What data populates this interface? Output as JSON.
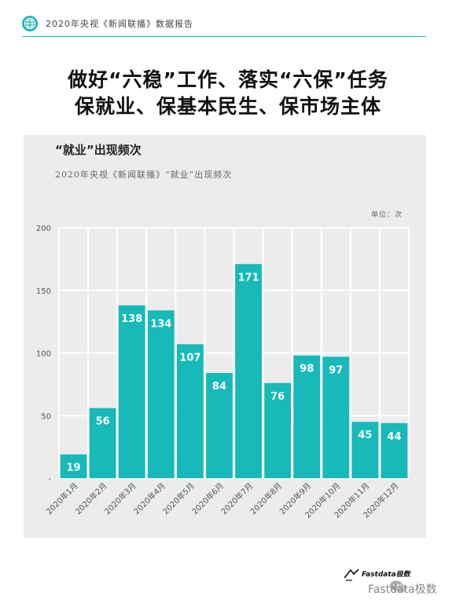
{
  "header": {
    "text": "2020年央视《新闻联播》数据报告",
    "icon": "globe-icon",
    "accent": "#1fb7b7"
  },
  "title": {
    "line1": "做好“六稳”工作、落实“六保”任务",
    "line2": "保就业、保基本民生、保市场主体"
  },
  "chart_data": {
    "type": "bar",
    "title": "“就业”出现频次",
    "subtitle": "2020年央视《新闻联播》“就业”出现频次",
    "unit_label": "单位：次",
    "categories": [
      "2020年1月",
      "2020年2月",
      "2020年3月",
      "2020年4月",
      "2020年5月",
      "2020年6月",
      "2020年7月",
      "2020年8月",
      "2020年9月",
      "2020年10月",
      "2020年11月",
      "2020年12月"
    ],
    "values": [
      19,
      56,
      138,
      134,
      107,
      84,
      171,
      76,
      98,
      97,
      45,
      44
    ],
    "ylim": [
      0,
      200
    ],
    "yticks": [
      {
        "value": 0,
        "label": "-"
      },
      {
        "value": 50,
        "label": "50"
      },
      {
        "value": 100,
        "label": "100"
      },
      {
        "value": 150,
        "label": "150"
      },
      {
        "value": 200,
        "label": "200"
      }
    ],
    "bar_color": "#17b9b9",
    "label_color": "#ffffff",
    "grid": true
  },
  "footer": {
    "logo_text": "Fastdata极数",
    "wechat_text": "Fastdata极数"
  }
}
